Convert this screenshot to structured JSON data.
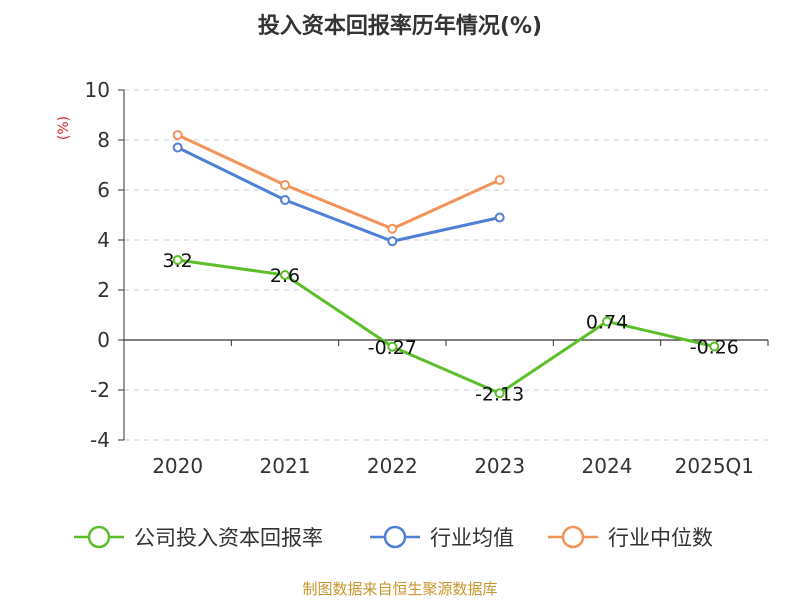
{
  "chart_data": {
    "type": "line",
    "title": "投入资本回报率历年情况(%)",
    "ylabel": "(%)",
    "categories": [
      "2020",
      "2021",
      "2022",
      "2023",
      "2024",
      "2025Q1"
    ],
    "ylim": [
      -4,
      10
    ],
    "yticks": [
      "10",
      "8",
      "6",
      "4",
      "2",
      "0",
      "-2",
      "-4"
    ],
    "grid": true,
    "legend_position": "bottom",
    "series": [
      {
        "name": "公司投入资本回报率",
        "color": "#5cbf2a",
        "values": [
          3.2,
          2.6,
          -0.27,
          -2.13,
          0.74,
          -0.26
        ],
        "labels": [
          "3.2",
          "2.6",
          "-0.27",
          "-2.13",
          "0.74",
          "-0.26"
        ]
      },
      {
        "name": "行业均值",
        "color": "#4f7fd6",
        "values": [
          7.7,
          5.6,
          3.95,
          4.9,
          null,
          null
        ]
      },
      {
        "name": "行业中位数",
        "color": "#f39259",
        "values": [
          8.2,
          6.2,
          4.45,
          6.4,
          null,
          null
        ]
      }
    ],
    "source": "制图数据来自恒生聚源数据库"
  }
}
